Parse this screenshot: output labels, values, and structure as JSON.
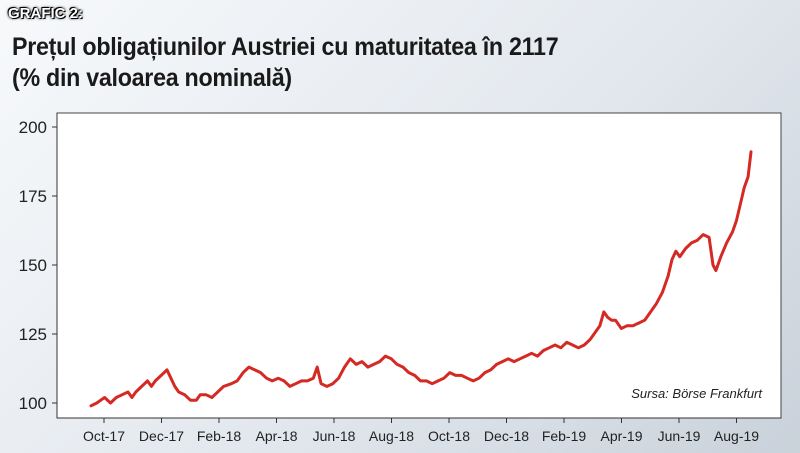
{
  "header": {
    "label": "GRAFIC 2:",
    "title_line1": "Prețul obligațiunilor Austriei cu maturitatea în 2117",
    "title_line2": "(% din valoarea nominală)"
  },
  "source": "Sursa: Börse Frankfurt",
  "colors": {
    "line": "#d42a23",
    "plot_bg": "#ffffff",
    "axis": "#333333"
  },
  "chart_data": {
    "type": "line",
    "title": "Prețul obligațiunilor Austriei cu maturitatea în 2117",
    "subtitle": "(% din valoarea nominală)",
    "xlabel": "",
    "ylabel": "",
    "ylim": [
      95,
      205
    ],
    "yticks": [
      100,
      125,
      150,
      175,
      200
    ],
    "xticks": [
      "Oct-17",
      "Dec-17",
      "Feb-18",
      "Apr-18",
      "Jun-18",
      "Aug-18",
      "Oct-18",
      "Dec-18",
      "Feb-19",
      "Apr-19",
      "Jun-19",
      "Aug-19"
    ],
    "grid": false,
    "legend": "none",
    "series": [
      {
        "values": [
          [
            0,
            99
          ],
          [
            0.3,
            100
          ],
          [
            0.5,
            101
          ],
          [
            0.7,
            102
          ],
          [
            1.0,
            100
          ],
          [
            1.3,
            102
          ],
          [
            1.6,
            103
          ],
          [
            1.9,
            104
          ],
          [
            2.1,
            102
          ],
          [
            2.3,
            104
          ],
          [
            2.6,
            106
          ],
          [
            2.9,
            108
          ],
          [
            3.1,
            106
          ],
          [
            3.3,
            108
          ],
          [
            3.6,
            110
          ],
          [
            3.9,
            112
          ],
          [
            4.1,
            109
          ],
          [
            4.3,
            106
          ],
          [
            4.5,
            104
          ],
          [
            4.8,
            103
          ],
          [
            5.1,
            101
          ],
          [
            5.4,
            101
          ],
          [
            5.6,
            103
          ],
          [
            5.9,
            103
          ],
          [
            6.2,
            102
          ],
          [
            6.5,
            104
          ],
          [
            6.8,
            106
          ],
          [
            7.2,
            107
          ],
          [
            7.5,
            108
          ],
          [
            7.8,
            111
          ],
          [
            8.1,
            113
          ],
          [
            8.4,
            112
          ],
          [
            8.7,
            111
          ],
          [
            9.0,
            109
          ],
          [
            9.3,
            108
          ],
          [
            9.6,
            109
          ],
          [
            9.9,
            108
          ],
          [
            10.2,
            106
          ],
          [
            10.5,
            107
          ],
          [
            10.8,
            108
          ],
          [
            11.1,
            108
          ],
          [
            11.4,
            109
          ],
          [
            11.6,
            113
          ],
          [
            11.8,
            107
          ],
          [
            12.1,
            106
          ],
          [
            12.4,
            107
          ],
          [
            12.7,
            109
          ],
          [
            13.0,
            113
          ],
          [
            13.3,
            116
          ],
          [
            13.6,
            114
          ],
          [
            13.9,
            115
          ],
          [
            14.2,
            113
          ],
          [
            14.5,
            114
          ],
          [
            14.8,
            115
          ],
          [
            15.1,
            117
          ],
          [
            15.4,
            116
          ],
          [
            15.7,
            114
          ],
          [
            16.0,
            113
          ],
          [
            16.3,
            111
          ],
          [
            16.6,
            110
          ],
          [
            16.9,
            108
          ],
          [
            17.2,
            108
          ],
          [
            17.5,
            107
          ],
          [
            17.8,
            108
          ],
          [
            18.1,
            109
          ],
          [
            18.4,
            111
          ],
          [
            18.7,
            110
          ],
          [
            19.0,
            110
          ],
          [
            19.3,
            109
          ],
          [
            19.6,
            108
          ],
          [
            19.9,
            109
          ],
          [
            20.2,
            111
          ],
          [
            20.5,
            112
          ],
          [
            20.8,
            114
          ],
          [
            21.1,
            115
          ],
          [
            21.4,
            116
          ],
          [
            21.7,
            115
          ],
          [
            22.0,
            116
          ],
          [
            22.3,
            117
          ],
          [
            22.6,
            118
          ],
          [
            22.9,
            117
          ],
          [
            23.2,
            119
          ],
          [
            23.5,
            120
          ],
          [
            23.8,
            121
          ],
          [
            24.1,
            120
          ],
          [
            24.4,
            122
          ],
          [
            24.7,
            121
          ],
          [
            25.0,
            120
          ],
          [
            25.3,
            121
          ],
          [
            25.6,
            123
          ],
          [
            25.9,
            126
          ],
          [
            26.1,
            128
          ],
          [
            26.3,
            133
          ],
          [
            26.5,
            131
          ],
          [
            26.7,
            130
          ],
          [
            26.9,
            130
          ],
          [
            27.2,
            127
          ],
          [
            27.5,
            128
          ],
          [
            27.8,
            128
          ],
          [
            28.1,
            129
          ],
          [
            28.4,
            130
          ],
          [
            28.7,
            133
          ],
          [
            29.0,
            136
          ],
          [
            29.3,
            140
          ],
          [
            29.6,
            146
          ],
          [
            29.8,
            152
          ],
          [
            30.0,
            155
          ],
          [
            30.2,
            153
          ],
          [
            30.5,
            156
          ],
          [
            30.8,
            158
          ],
          [
            31.1,
            159
          ],
          [
            31.4,
            161
          ],
          [
            31.7,
            160
          ],
          [
            31.9,
            150
          ],
          [
            32.05,
            148
          ],
          [
            32.3,
            153
          ],
          [
            32.6,
            158
          ],
          [
            32.9,
            162
          ],
          [
            33.1,
            166
          ],
          [
            33.3,
            172
          ],
          [
            33.5,
            178
          ],
          [
            33.7,
            182
          ],
          [
            33.85,
            191
          ]
        ]
      }
    ]
  }
}
